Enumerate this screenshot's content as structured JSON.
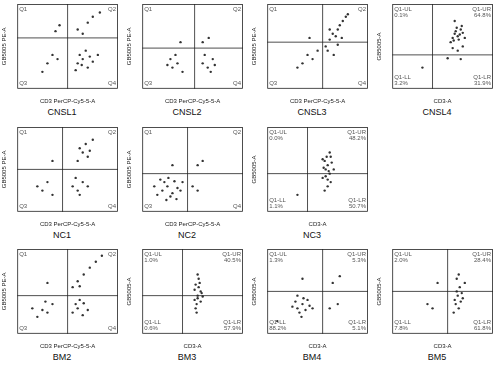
{
  "chart_data": [
    {
      "type": "scatter",
      "title": "CNSL1",
      "x_label": "CD3 PerCP-Cy5-5-A",
      "y_label": "GB5005 PE-A",
      "xlim": [
        0,
        100
      ],
      "ylim": [
        0,
        100
      ],
      "grid": false,
      "tick_labels": false,
      "color": "#333333",
      "marker": "circle",
      "gate": {
        "x": 50,
        "y": 60
      },
      "quadrants": {
        "UL": [
          "Q1"
        ],
        "UR": [
          "Q2"
        ],
        "LL": [
          "Q3"
        ],
        "LR": [
          "Q4"
        ]
      },
      "x": [
        60,
        65,
        70,
        62,
        72,
        58,
        68,
        75,
        64,
        80,
        60,
        70,
        75,
        65,
        82,
        30,
        35,
        25,
        40,
        38,
        42
      ],
      "values": [
        30,
        35,
        25,
        40,
        38,
        22,
        45,
        32,
        28,
        40,
        70,
        78,
        85,
        65,
        90,
        30,
        40,
        20,
        35,
        68,
        75
      ]
    },
    {
      "type": "scatter",
      "title": "CNSL2",
      "x_label": "CD3 PerCP-Cy5-5-A",
      "y_label": "GB5005 PE-A",
      "xlim": [
        0,
        100
      ],
      "ylim": [
        0,
        100
      ],
      "grid": false,
      "tick_labels": false,
      "color": "#333333",
      "marker": "circle",
      "gate": {
        "x": 52,
        "y": 48
      },
      "quadrants": {
        "UL": [
          "Q1"
        ],
        "UR": [
          "Q2"
        ],
        "LL": [
          "Q3"
        ],
        "LR": [
          "Q4"
        ]
      },
      "x": [
        30,
        35,
        28,
        40,
        33,
        25,
        60,
        65,
        70,
        62,
        68,
        72,
        60,
        66,
        38
      ],
      "values": [
        25,
        30,
        35,
        20,
        40,
        28,
        30,
        25,
        35,
        40,
        20,
        28,
        55,
        60,
        55
      ]
    },
    {
      "type": "scatter",
      "title": "CNSL3",
      "x_label": "CD3 PerCP-Cy5-5-A",
      "y_label": "GB5005 PE-A",
      "xlim": [
        0,
        100
      ],
      "ylim": [
        0,
        100
      ],
      "grid": false,
      "tick_labels": false,
      "color": "#333333",
      "marker": "circle",
      "gate": {
        "x": 55,
        "y": 55
      },
      "quadrants": {
        "UL": [
          "Q1"
        ],
        "UR": [
          "Q2"
        ],
        "LL": [
          "Q3"
        ],
        "LR": [
          "Q4"
        ]
      },
      "x": [
        30,
        35,
        40,
        45,
        50,
        58,
        62,
        65,
        70,
        72,
        68,
        75,
        78,
        60,
        66,
        70,
        80,
        62,
        74,
        42
      ],
      "values": [
        25,
        30,
        40,
        35,
        45,
        50,
        58,
        65,
        70,
        75,
        62,
        80,
        85,
        45,
        40,
        52,
        88,
        70,
        60,
        60
      ]
    },
    {
      "type": "scatter",
      "title": "CNSL4",
      "x_label": "CD3-A",
      "y_label": "GB5005-A",
      "xlim": [
        0,
        100
      ],
      "ylim": [
        0,
        100
      ],
      "grid": false,
      "tick_labels": false,
      "color": "#333333",
      "marker": "circle",
      "gate": {
        "x": 40,
        "y": 40
      },
      "quadrants": {
        "UL": [
          "Q1-UL",
          "0.1%"
        ],
        "UR": [
          "Q1-UR",
          "64.8%"
        ],
        "LL": [
          "Q1-LL",
          "3.2%"
        ],
        "LR": [
          "Q1-LR",
          "31.9%"
        ]
      },
      "x": [
        60,
        62,
        65,
        68,
        66,
        70,
        64,
        58,
        72,
        63,
        67,
        61,
        69,
        60,
        65,
        70,
        55,
        68,
        30,
        62
      ],
      "values": [
        60,
        65,
        62,
        70,
        58,
        66,
        72,
        55,
        60,
        68,
        64,
        57,
        74,
        48,
        45,
        50,
        36,
        35,
        25,
        80
      ]
    },
    {
      "type": "scatter",
      "title": "NC1",
      "x_label": "CD3 PerCP-Cy5-5-A",
      "y_label": "GB5005 PE-A",
      "xlim": [
        0,
        100
      ],
      "ylim": [
        0,
        100
      ],
      "grid": false,
      "tick_labels": false,
      "color": "#333333",
      "marker": "circle",
      "gate": {
        "x": 45,
        "y": 50
      },
      "quadrants": {
        "UL": [
          "Q1"
        ],
        "UR": [
          "Q2"
        ],
        "LL": [
          "Q3"
        ],
        "LR": [
          "Q4"
        ]
      },
      "x": [
        60,
        65,
        70,
        62,
        68,
        72,
        75,
        55,
        60,
        65,
        58,
        70,
        62,
        25,
        30,
        35,
        20,
        35
      ],
      "values": [
        60,
        70,
        65,
        75,
        80,
        72,
        85,
        30,
        25,
        35,
        40,
        30,
        20,
        25,
        35,
        20,
        30,
        60
      ]
    },
    {
      "type": "scatter",
      "title": "NC2",
      "x_label": "CD3 PerCP-Cy5-5-A",
      "y_label": "GB5005 PE-A",
      "xlim": [
        0,
        100
      ],
      "ylim": [
        0,
        100
      ],
      "grid": false,
      "tick_labels": false,
      "color": "#333333",
      "marker": "circle",
      "gate": {
        "x": 45,
        "y": 45
      },
      "quadrants": {
        "UL": [
          "Q1"
        ],
        "UR": [
          "Q2"
        ],
        "LL": [
          "Q3"
        ],
        "LR": [
          "Q4"
        ]
      },
      "x": [
        15,
        20,
        25,
        30,
        22,
        35,
        28,
        18,
        32,
        38,
        12,
        26,
        40,
        24,
        34,
        50,
        55,
        60,
        55,
        30
      ],
      "values": [
        20,
        25,
        30,
        22,
        35,
        28,
        18,
        38,
        36,
        25,
        30,
        40,
        35,
        14,
        15,
        30,
        25,
        60,
        55,
        55
      ]
    },
    {
      "type": "scatter",
      "title": "NC3",
      "x_label": "CD3-A",
      "y_label": "GB5005-A",
      "xlim": [
        0,
        100
      ],
      "ylim": [
        0,
        100
      ],
      "grid": false,
      "tick_labels": false,
      "color": "#333333",
      "marker": "circle",
      "gate": {
        "x": 40,
        "y": 45
      },
      "quadrants": {
        "UL": [
          "Q1-UL",
          "0.0%"
        ],
        "UR": [
          "Q1-UR",
          "48.2%"
        ],
        "LL": [
          "Q1-LL",
          "1.1%"
        ],
        "LR": [
          "Q1-LR",
          "50.7%"
        ]
      },
      "x": [
        55,
        58,
        60,
        62,
        57,
        63,
        59,
        61,
        56,
        64,
        60,
        58,
        62,
        55,
        66,
        60,
        57,
        63,
        30
      ],
      "values": [
        40,
        50,
        55,
        45,
        60,
        35,
        65,
        48,
        52,
        58,
        30,
        42,
        70,
        62,
        50,
        38,
        25,
        65,
        20
      ]
    },
    {
      "type": "scatter",
      "title": "BM2",
      "x_label": "CD3 PerCP-Cy5-5-A",
      "y_label": "GB5005 PE-A",
      "xlim": [
        0,
        100
      ],
      "ylim": [
        0,
        100
      ],
      "grid": false,
      "tick_labels": false,
      "color": "#333333",
      "marker": "circle",
      "gate": {
        "x": 50,
        "y": 45
      },
      "quadrants": {
        "UL": [
          "Q1"
        ],
        "UR": [
          "Q2"
        ],
        "LL": [
          "Q3"
        ],
        "LR": [
          "Q4"
        ]
      },
      "x": [
        20,
        25,
        30,
        35,
        28,
        15,
        55,
        60,
        65,
        58,
        62,
        70,
        66,
        55,
        60,
        66,
        72,
        78,
        84,
        62,
        30
      ],
      "values": [
        20,
        28,
        25,
        35,
        38,
        30,
        25,
        30,
        22,
        35,
        40,
        28,
        36,
        55,
        62,
        70,
        78,
        85,
        92,
        56,
        60
      ]
    },
    {
      "type": "scatter",
      "title": "BM3",
      "x_label": "CD3-A",
      "y_label": "GB5005-A",
      "xlim": [
        0,
        100
      ],
      "ylim": [
        0,
        100
      ],
      "grid": false,
      "tick_labels": false,
      "color": "#333333",
      "marker": "circle",
      "gate": {
        "x": 40,
        "y": 45
      },
      "quadrants": {
        "UL": [
          "Q1-UL",
          "1.0%"
        ],
        "UR": [
          "Q1-UR",
          "40.5%"
        ],
        "LL": [
          "Q1-LL",
          "0.6%"
        ],
        "LR": [
          "Q1-LR",
          "57.9%"
        ]
      },
      "x": [
        52,
        55,
        58,
        54,
        56,
        53,
        57,
        55,
        59,
        52,
        56,
        54,
        58,
        55,
        53,
        60
      ],
      "values": [
        40,
        45,
        50,
        35,
        55,
        30,
        60,
        42,
        48,
        52,
        65,
        25,
        38,
        70,
        58,
        44
      ]
    },
    {
      "type": "scatter",
      "title": "BM4",
      "x_label": "CD3-A",
      "y_label": "GB5005-A",
      "xlim": [
        0,
        100
      ],
      "ylim": [
        0,
        100
      ],
      "grid": false,
      "tick_labels": false,
      "color": "#333333",
      "marker": "circle",
      "gate": {
        "x": 55,
        "y": 50
      },
      "quadrants": {
        "UL": [
          "Q1-UL",
          "1.3%"
        ],
        "UR": [
          "Q1-UR",
          "5.3%"
        ],
        "LL": [
          "Q1-LL",
          "88.2%"
        ],
        "LR": [
          "Q1-LR",
          "5.1%"
        ]
      },
      "x": [
        30,
        35,
        28,
        38,
        32,
        40,
        25,
        36,
        42,
        30,
        45,
        34,
        62,
        70,
        65,
        72,
        35,
        10
      ],
      "values": [
        30,
        35,
        38,
        28,
        25,
        40,
        32,
        42,
        33,
        45,
        30,
        20,
        30,
        35,
        60,
        68,
        65,
        15
      ]
    },
    {
      "type": "scatter",
      "title": "BM5",
      "x_label": "CD3-A",
      "y_label": "GB5005-A",
      "xlim": [
        0,
        100
      ],
      "ylim": [
        0,
        100
      ],
      "grid": false,
      "tick_labels": false,
      "color": "#333333",
      "marker": "circle",
      "gate": {
        "x": 55,
        "y": 50
      },
      "quadrants": {
        "UL": [
          "Q1-UL",
          "2.0%"
        ],
        "UR": [
          "Q1-UR",
          "28.4%"
        ],
        "LL": [
          "Q1-LL",
          "7.8%"
        ],
        "LR": [
          "Q1-LR",
          "61.8%"
        ]
      },
      "x": [
        62,
        65,
        68,
        64,
        66,
        70,
        63,
        67,
        72,
        64,
        69,
        61,
        66,
        40,
        35,
        45
      ],
      "values": [
        40,
        45,
        38,
        50,
        30,
        42,
        35,
        55,
        60,
        65,
        48,
        25,
        70,
        30,
        35,
        60
      ]
    }
  ]
}
